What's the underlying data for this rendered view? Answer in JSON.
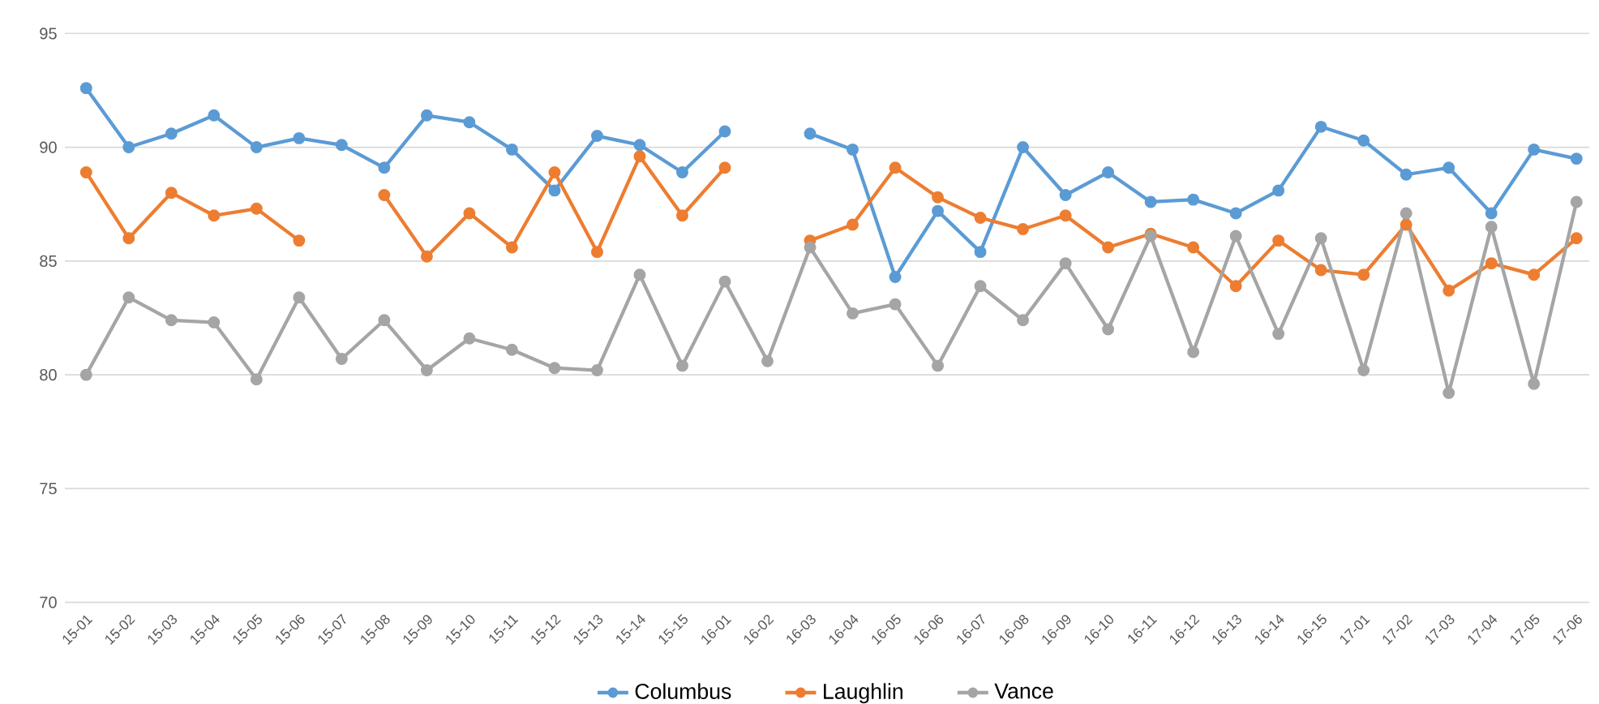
{
  "chart_data": {
    "type": "line",
    "categories": [
      "15-01",
      "15-02",
      "15-03",
      "15-04",
      "15-05",
      "15-06",
      "15-07",
      "15-08",
      "15-09",
      "15-10",
      "15-11",
      "15-12",
      "15-13",
      "15-14",
      "15-15",
      "16-01",
      "16-02",
      "16-03",
      "16-04",
      "16-05",
      "16-06",
      "16-07",
      "16-08",
      "16-09",
      "16-10",
      "16-11",
      "16-12",
      "16-13",
      "16-14",
      "16-15",
      "17-01",
      "17-02",
      "17-03",
      "17-04",
      "17-05",
      "17-06"
    ],
    "series": [
      {
        "name": "Columbus",
        "color": "#5b9bd5",
        "values": [
          92.6,
          90.0,
          90.6,
          91.4,
          90.0,
          90.4,
          90.1,
          89.1,
          91.4,
          91.1,
          89.9,
          88.1,
          90.5,
          90.1,
          88.9,
          90.7,
          null,
          90.6,
          89.9,
          84.3,
          87.2,
          85.4,
          90.0,
          87.9,
          88.9,
          87.6,
          87.7,
          87.1,
          88.1,
          90.9,
          90.3,
          88.8,
          89.1,
          87.1,
          89.9,
          89.5
        ]
      },
      {
        "name": "Laughlin",
        "color": "#ed7d31",
        "values": [
          88.9,
          86.0,
          88.0,
          87.0,
          87.3,
          85.9,
          null,
          87.9,
          85.2,
          87.1,
          85.6,
          88.9,
          85.4,
          89.6,
          87.0,
          89.1,
          null,
          85.9,
          86.6,
          89.1,
          87.8,
          86.9,
          86.4,
          87.0,
          85.6,
          86.2,
          85.6,
          83.9,
          85.9,
          84.6,
          84.4,
          86.6,
          83.7,
          84.9,
          84.4,
          86.0
        ]
      },
      {
        "name": "Vance",
        "color": "#a5a5a5",
        "values": [
          80.0,
          83.4,
          82.4,
          82.3,
          79.8,
          83.4,
          80.7,
          82.4,
          80.2,
          81.6,
          81.1,
          80.3,
          80.2,
          84.4,
          80.4,
          84.1,
          80.6,
          85.6,
          82.7,
          83.1,
          80.4,
          83.9,
          82.4,
          84.9,
          82.0,
          86.1,
          81.0,
          86.1,
          81.8,
          86.0,
          80.2,
          87.1,
          79.2,
          86.5,
          79.6,
          87.6
        ]
      }
    ],
    "ylim": [
      70,
      95
    ],
    "yticks": [
      70,
      75,
      80,
      85,
      90,
      95
    ],
    "grid": "y",
    "legend": "bottom",
    "marker": "circle",
    "line_style": "solid"
  }
}
